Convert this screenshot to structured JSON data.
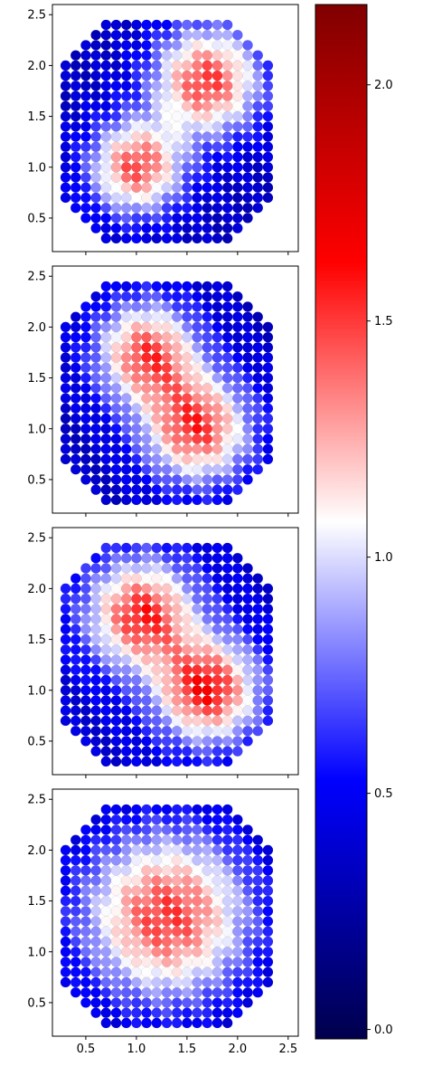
{
  "chart_data": {
    "type": "scatter",
    "description_free": true,
    "colormap": {
      "name": "seismic",
      "stops": [
        "#00004c",
        "#0000ff",
        "#ffffff",
        "#ff0000",
        "#800000"
      ],
      "range": [
        -0.02,
        2.17
      ],
      "ticks": [
        0.0,
        0.5,
        1.0,
        1.5,
        2.0
      ],
      "tick_labels": [
        "0.0",
        "0.5",
        "1.0",
        "1.5",
        "2.0"
      ]
    },
    "x_ticks": [
      0.5,
      1.0,
      1.5,
      2.0,
      2.5
    ],
    "x_tick_labels": [
      "0.5",
      "1.0",
      "1.5",
      "2.0",
      "2.5"
    ],
    "y_ticks": [
      0.5,
      1.0,
      1.5,
      2.0,
      2.5
    ],
    "y_tick_labels": [
      "0.5",
      "1.0",
      "1.5",
      "2.0",
      "2.5"
    ],
    "xlim": [
      0.17,
      2.6
    ],
    "ylim": [
      0.17,
      2.6
    ],
    "grid": false,
    "lattice": {
      "spacing": 0.1,
      "cols": 23,
      "col_start_x": 0.3,
      "row_start_y": 0.3,
      "row_x_ranges": [
        [
          0.7,
          1.9
        ],
        [
          0.6,
          2.0
        ],
        [
          0.5,
          2.1
        ],
        [
          0.4,
          2.2
        ],
        [
          0.3,
          2.3
        ],
        [
          0.3,
          2.3
        ],
        [
          0.3,
          2.3
        ],
        [
          0.3,
          2.3
        ],
        [
          0.3,
          2.3
        ],
        [
          0.3,
          2.3
        ],
        [
          0.3,
          2.3
        ],
        [
          0.3,
          2.3
        ],
        [
          0.3,
          2.3
        ],
        [
          0.3,
          2.3
        ],
        [
          0.3,
          2.3
        ],
        [
          0.3,
          2.3
        ],
        [
          0.3,
          2.3
        ],
        [
          0.3,
          2.3
        ],
        [
          0.4,
          2.2
        ],
        [
          0.5,
          2.1
        ],
        [
          0.6,
          2.0
        ],
        [
          0.7,
          1.9
        ]
      ]
    },
    "panels": [
      {
        "hotspots": [
          {
            "x": 1.7,
            "y": 1.85,
            "amp": 1.15,
            "sigma": 0.38
          },
          {
            "x": 1.0,
            "y": 1.0,
            "amp": 1.1,
            "sigma": 0.33
          }
        ],
        "base": 0.35
      },
      {
        "hotspots": [
          {
            "x": 1.1,
            "y": 1.75,
            "amp": 1.1,
            "sigma": 0.36
          },
          {
            "x": 1.6,
            "y": 1.0,
            "amp": 1.15,
            "sigma": 0.38
          }
        ],
        "base": 0.35
      },
      {
        "hotspots": [
          {
            "x": 1.05,
            "y": 1.75,
            "amp": 1.15,
            "sigma": 0.38
          },
          {
            "x": 1.7,
            "y": 1.0,
            "amp": 1.2,
            "sigma": 0.36
          }
        ],
        "base": 0.4
      },
      {
        "hotspots": [
          {
            "x": 1.3,
            "y": 1.35,
            "amp": 1.25,
            "sigma": 0.62
          }
        ],
        "base": 0.25
      }
    ]
  }
}
